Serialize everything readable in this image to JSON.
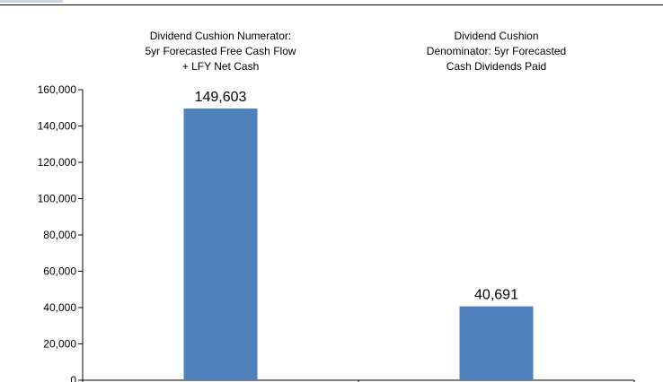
{
  "chart_data": {
    "type": "bar",
    "categories": [
      [
        "Dividend Cushion Numerator:",
        "5yr Forecasted Free Cash Flow",
        "+ LFY Net Cash"
      ],
      [
        "Dividend Cushion",
        "Denominator: 5yr Forecasted",
        "Cash Dividends Paid"
      ]
    ],
    "values": [
      149603,
      40691
    ],
    "data_labels": [
      "149,603",
      "40,691"
    ],
    "y_ticks": [
      "0",
      "20,000",
      "40,000",
      "60,000",
      "80,000",
      "100,000",
      "120,000",
      "140,000",
      "160,000"
    ],
    "ylim": [
      0,
      160000
    ],
    "bar_color": "#4f81bd",
    "grid": false,
    "title": "",
    "xlabel": "",
    "ylabel": ""
  }
}
